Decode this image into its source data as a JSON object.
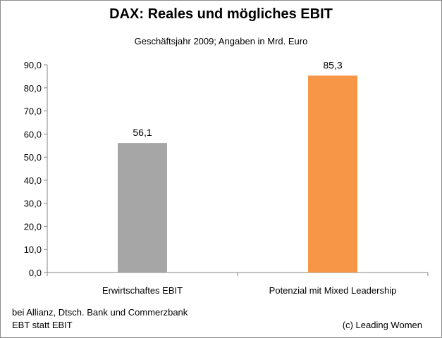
{
  "chart_data": {
    "type": "bar",
    "title": "DAX: Reales und mögliches EBIT",
    "subtitle": "Geschäftsjahr 2009; Angaben in Mrd. Euro",
    "categories": [
      "Erwirtschaftes EBIT",
      "Potenzial mit Mixed Leadership"
    ],
    "values": [
      56.1,
      85.3
    ],
    "data_labels": [
      "56,1",
      "85,3"
    ],
    "bar_colors": [
      "#a6a6a6",
      "#f79646"
    ],
    "ylim": [
      0,
      90
    ],
    "y_ticks": [
      "0,0",
      "10,0",
      "20,0",
      "30,0",
      "40,0",
      "50,0",
      "60,0",
      "70,0",
      "80,0",
      "90,0"
    ],
    "xlabel": "",
    "ylabel": "",
    "grid": false,
    "legend": "none"
  },
  "footnote": {
    "line1": "bei Allianz, Dtsch. Bank und Commerzbank",
    "line2": "EBT statt EBIT"
  },
  "credit": "(c) Leading Women"
}
